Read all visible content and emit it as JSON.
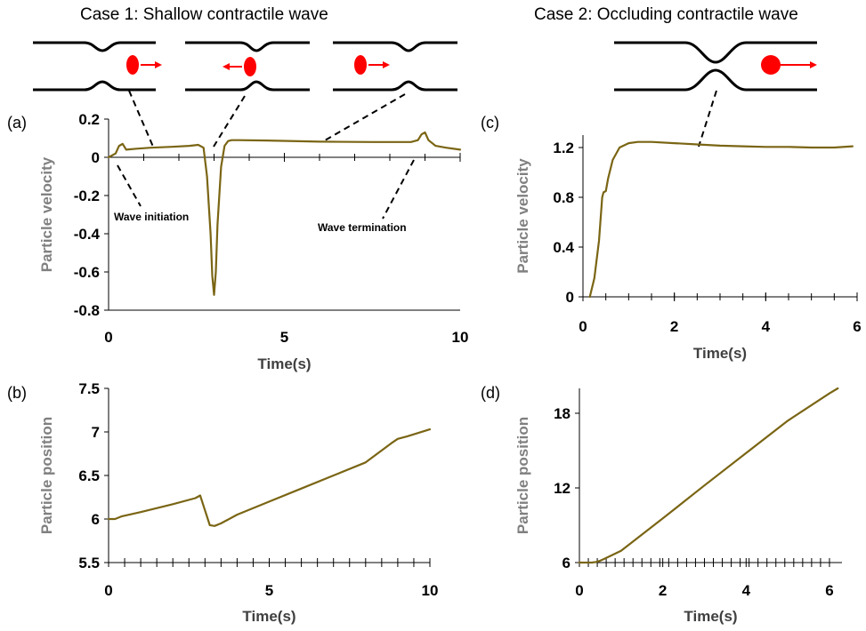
{
  "case_titles": {
    "case1": "Case 1: Shallow contractile wave",
    "case2": "Case 2: Occluding contractile wave"
  },
  "colors": {
    "series": "#7a6514",
    "particle": "#ff0000"
  },
  "chart_data": [
    {
      "id": "a",
      "panel_label": "(a)",
      "type": "line",
      "xlabel": "Time(s)",
      "ylabel": "Particle velocity",
      "xlim": [
        0,
        10
      ],
      "ylim": [
        -0.8,
        0.2
      ],
      "x_ticks": [
        0,
        5,
        10
      ],
      "x_tick_labels": [
        "0",
        "5",
        "10"
      ],
      "y_ticks": [
        -0.8,
        -0.6,
        -0.4,
        -0.2,
        0,
        0.2
      ],
      "y_tick_labels": [
        "-0.8",
        "-0.6",
        "-0.4",
        "-0.2",
        "0",
        "0.2"
      ],
      "annotations": [
        "Wave initiation",
        "Wave termination"
      ],
      "series": [
        {
          "x": [
            0,
            0.2,
            0.3,
            0.4,
            0.5,
            0.8,
            1.2,
            1.8,
            2.3,
            2.55,
            2.7,
            2.8,
            2.9,
            2.95,
            3.0,
            3.05,
            3.1,
            3.2,
            3.3,
            3.4,
            3.5,
            3.7,
            4.5,
            6.0,
            7.5,
            8.6,
            8.8,
            8.9,
            9.0,
            9.1,
            9.3,
            9.6,
            10.0
          ],
          "y": [
            0.0,
            0.02,
            0.06,
            0.07,
            0.04,
            0.045,
            0.05,
            0.055,
            0.06,
            0.065,
            0.05,
            -0.1,
            -0.4,
            -0.62,
            -0.72,
            -0.6,
            -0.35,
            -0.05,
            0.06,
            0.085,
            0.09,
            0.09,
            0.088,
            0.082,
            0.08,
            0.08,
            0.09,
            0.12,
            0.13,
            0.09,
            0.06,
            0.05,
            0.04
          ]
        }
      ]
    },
    {
      "id": "b",
      "panel_label": "(b)",
      "type": "line",
      "xlabel": "Time(s)",
      "ylabel": "Particle position",
      "xlim": [
        0,
        10
      ],
      "ylim": [
        5.5,
        7.5
      ],
      "x_ticks": [
        0,
        5,
        10
      ],
      "x_tick_labels": [
        "0",
        "5",
        "10"
      ],
      "y_ticks": [
        5.5,
        6,
        6.5,
        7,
        7.5
      ],
      "y_tick_labels": [
        "5.5",
        "6",
        "6.5",
        "7",
        "7.5"
      ],
      "series": [
        {
          "x": [
            0,
            0.2,
            0.4,
            1.0,
            2.0,
            2.7,
            2.85,
            3.0,
            3.15,
            3.3,
            3.5,
            4.0,
            5.0,
            6.0,
            7.0,
            8.0,
            8.8,
            9.0,
            9.3,
            10.0
          ],
          "y": [
            6.0,
            6.0,
            6.03,
            6.08,
            6.17,
            6.24,
            6.27,
            6.1,
            5.93,
            5.92,
            5.95,
            6.05,
            6.2,
            6.35,
            6.5,
            6.65,
            6.87,
            6.92,
            6.95,
            7.03
          ]
        }
      ]
    },
    {
      "id": "c",
      "panel_label": "(c)",
      "type": "line",
      "xlabel": "Time(s)",
      "ylabel": "Particle velocity",
      "xlim": [
        0,
        6
      ],
      "ylim": [
        0,
        1.3
      ],
      "x_ticks": [
        0,
        2,
        4,
        6
      ],
      "x_tick_labels": [
        "0",
        "2",
        "4",
        "6"
      ],
      "y_ticks": [
        0,
        0.4,
        0.8,
        1.2
      ],
      "y_tick_labels": [
        "0",
        "0.4",
        "0.8",
        "1.2"
      ],
      "series": [
        {
          "x": [
            0.15,
            0.25,
            0.35,
            0.42,
            0.45,
            0.5,
            0.55,
            0.65,
            0.8,
            1.0,
            1.2,
            1.5,
            2.0,
            2.5,
            3.0,
            3.5,
            4.0,
            4.5,
            5.0,
            5.5,
            5.9
          ],
          "y": [
            0.0,
            0.15,
            0.45,
            0.8,
            0.84,
            0.85,
            0.95,
            1.1,
            1.2,
            1.235,
            1.245,
            1.245,
            1.235,
            1.225,
            1.215,
            1.21,
            1.205,
            1.205,
            1.2,
            1.2,
            1.21
          ]
        }
      ]
    },
    {
      "id": "d",
      "panel_label": "(d)",
      "type": "line",
      "xlabel": "Time(s)",
      "ylabel": "Particle position",
      "xlim": [
        0,
        6.3
      ],
      "ylim": [
        6,
        20
      ],
      "x_ticks": [
        0,
        2,
        4,
        6
      ],
      "x_tick_labels": [
        "0",
        "2",
        "4",
        "6"
      ],
      "y_ticks": [
        6,
        12,
        18
      ],
      "y_tick_labels": [
        "6",
        "12",
        "18"
      ],
      "series": [
        {
          "x": [
            0,
            0.3,
            0.4,
            0.5,
            0.6,
            1.0,
            2.0,
            3.0,
            4.0,
            5.0,
            6.0,
            6.2
          ],
          "y": [
            6.0,
            6.0,
            6.05,
            6.15,
            6.3,
            6.95,
            9.55,
            12.2,
            14.8,
            17.4,
            19.6,
            20.0
          ]
        }
      ]
    }
  ]
}
